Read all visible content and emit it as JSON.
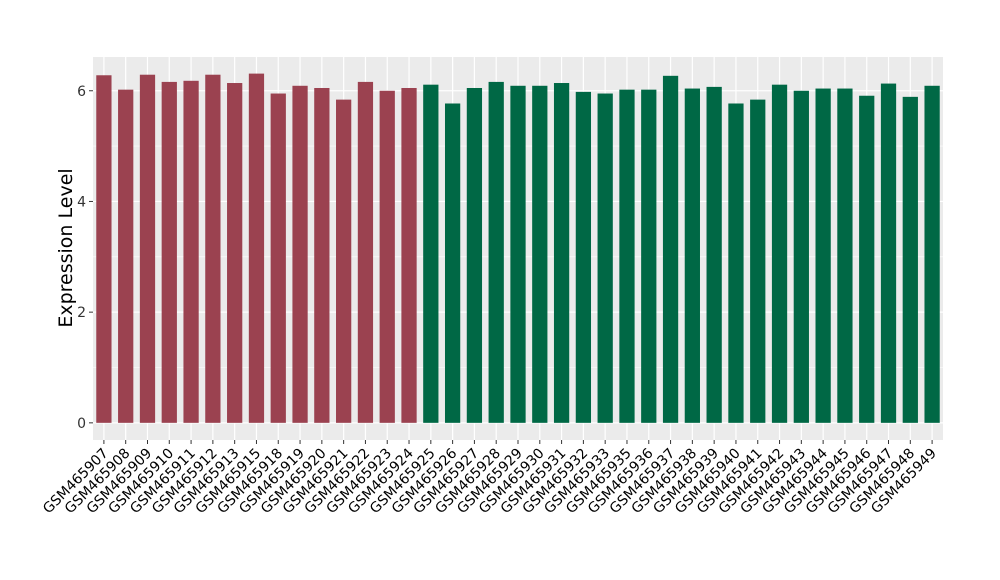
{
  "chart_data": {
    "type": "bar",
    "title": "",
    "xlabel": "",
    "ylabel": "Expression Level",
    "ylim": [
      -0.31,
      6.61
    ],
    "yticks": [
      0,
      2,
      4,
      6
    ],
    "grid": true,
    "categories": [
      "GSM465907",
      "GSM465908",
      "GSM465909",
      "GSM465910",
      "GSM465911",
      "GSM465912",
      "GSM465913",
      "GSM465915",
      "GSM465918",
      "GSM465919",
      "GSM465920",
      "GSM465921",
      "GSM465922",
      "GSM465923",
      "GSM465924",
      "GSM465925",
      "GSM465926",
      "GSM465927",
      "GSM465928",
      "GSM465929",
      "GSM465930",
      "GSM465931",
      "GSM465932",
      "GSM465933",
      "GSM465935",
      "GSM465936",
      "GSM465937",
      "GSM465938",
      "GSM465939",
      "GSM465940",
      "GSM465941",
      "GSM465942",
      "GSM465943",
      "GSM465944",
      "GSM465945",
      "GSM465946",
      "GSM465947",
      "GSM465948",
      "GSM465949"
    ],
    "values": [
      6.28,
      6.02,
      6.29,
      6.16,
      6.18,
      6.29,
      6.14,
      6.31,
      5.95,
      6.09,
      6.05,
      5.84,
      6.16,
      6.0,
      6.05,
      6.11,
      5.77,
      6.05,
      6.16,
      6.09,
      6.09,
      6.14,
      5.98,
      5.95,
      6.02,
      6.02,
      6.27,
      6.04,
      6.07,
      5.77,
      5.84,
      6.11,
      6.0,
      6.04,
      6.04,
      5.91,
      6.13,
      5.89,
      6.09
    ],
    "groups": [
      {
        "count": 15,
        "color": "#9B4250"
      },
      {
        "count": 24,
        "color": "#006845"
      }
    ],
    "panel_background": "#EBEBEB"
  }
}
